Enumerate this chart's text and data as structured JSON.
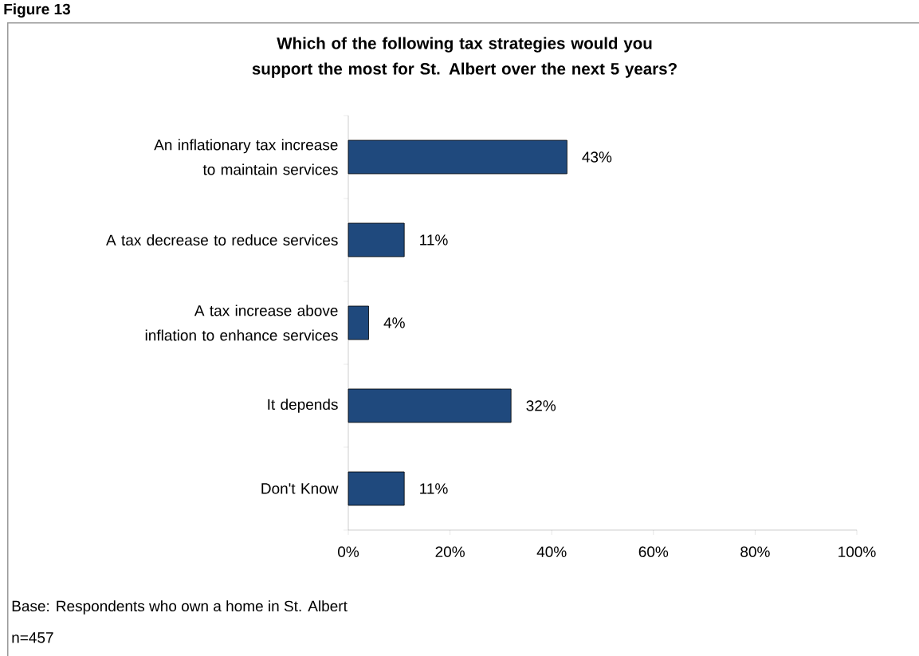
{
  "chart_data": {
    "type": "bar",
    "orientation": "horizontal",
    "title": "Which of the following tax strategies would you support the most for St. Albert over the next 5 years?",
    "categories": [
      "An inflationary tax increase to maintain services",
      "A tax decrease to reduce services",
      "A tax increase above inflation to enhance services",
      "It depends",
      "Don't Know"
    ],
    "values": [
      43,
      11,
      4,
      32,
      11
    ],
    "value_labels": [
      "43%",
      "11%",
      "4%",
      "32%",
      "11%"
    ],
    "color": "#1f497d",
    "xlim": [
      0,
      100
    ],
    "xticks": [
      {
        "value": 0,
        "label": "0%"
      },
      {
        "value": 20,
        "label": "20%"
      },
      {
        "value": 40,
        "label": "40%"
      },
      {
        "value": 60,
        "label": "60%"
      },
      {
        "value": 80,
        "label": "80%"
      },
      {
        "value": 100,
        "label": "100%"
      }
    ],
    "annotations": [
      "Figure 13",
      "Base: Respondents who own a home in St. Albert",
      "n=457"
    ]
  }
}
